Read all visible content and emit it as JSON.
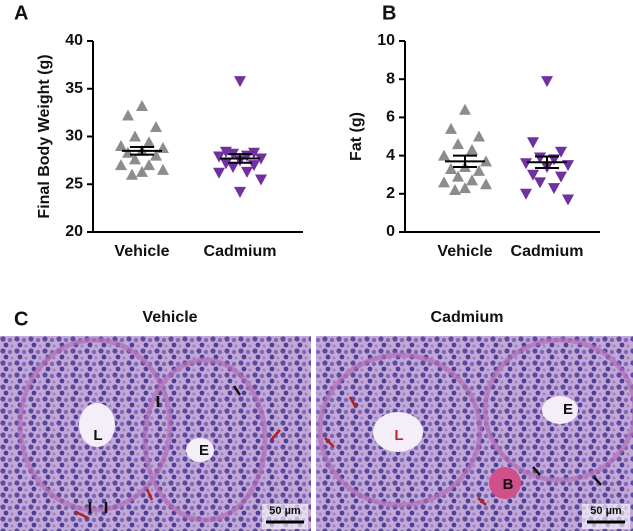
{
  "chart_data": [
    {
      "type": "scatter",
      "panel": "A",
      "ylabel": "Final Body Weight (g)",
      "categories": [
        "Vehicle",
        "Cadmium"
      ],
      "series": [
        {
          "color": "#8c8c8c",
          "marker": "triangle-up",
          "values": [
            33.2,
            32.2,
            31.0,
            30.0,
            29.4,
            29.0,
            28.8,
            28.5,
            28.3,
            28.0,
            27.6,
            27.0,
            27.0,
            26.5,
            26.3,
            26.0
          ]
        },
        {
          "color": "#7030a0",
          "marker": "triangle-down",
          "values": [
            35.8,
            28.4,
            28.3,
            28.2,
            28.0,
            27.9,
            27.7,
            27.5,
            27.2,
            27.0,
            26.8,
            26.3,
            26.2,
            25.5,
            24.2
          ]
        }
      ],
      "means": [
        28.5,
        27.7
      ],
      "sems": [
        0.4,
        0.45
      ],
      "ylim": [
        20,
        40
      ],
      "yticks": [
        20,
        25,
        30,
        35,
        40
      ]
    },
    {
      "type": "scatter",
      "panel": "B",
      "ylabel": "Fat (g)",
      "categories": [
        "Vehicle",
        "Cadmium"
      ],
      "series": [
        {
          "color": "#8c8c8c",
          "marker": "triangle-up",
          "values": [
            6.4,
            5.4,
            5.0,
            4.6,
            4.3,
            4.0,
            3.7,
            3.4,
            3.3,
            3.2,
            2.9,
            2.7,
            2.6,
            2.5,
            2.3,
            2.2
          ]
        },
        {
          "color": "#7030a0",
          "marker": "triangle-down",
          "values": [
            7.9,
            4.7,
            4.2,
            3.9,
            3.8,
            3.6,
            3.5,
            3.4,
            3.0,
            2.9,
            2.6,
            2.3,
            2.0,
            1.7
          ]
        }
      ],
      "means": [
        3.7,
        3.65
      ],
      "sems": [
        0.3,
        0.3
      ],
      "ylim": [
        0,
        10
      ],
      "yticks": [
        0,
        2,
        4,
        6,
        8,
        10
      ]
    }
  ],
  "panel_c": {
    "panel": "C",
    "images": [
      {
        "title": "Vehicle",
        "labels": [
          "L",
          "E"
        ],
        "scale_bar": "50 µm"
      },
      {
        "title": "Cadmium",
        "labels": [
          "L",
          "E",
          "B"
        ],
        "scale_bar": "50 µm"
      }
    ]
  }
}
